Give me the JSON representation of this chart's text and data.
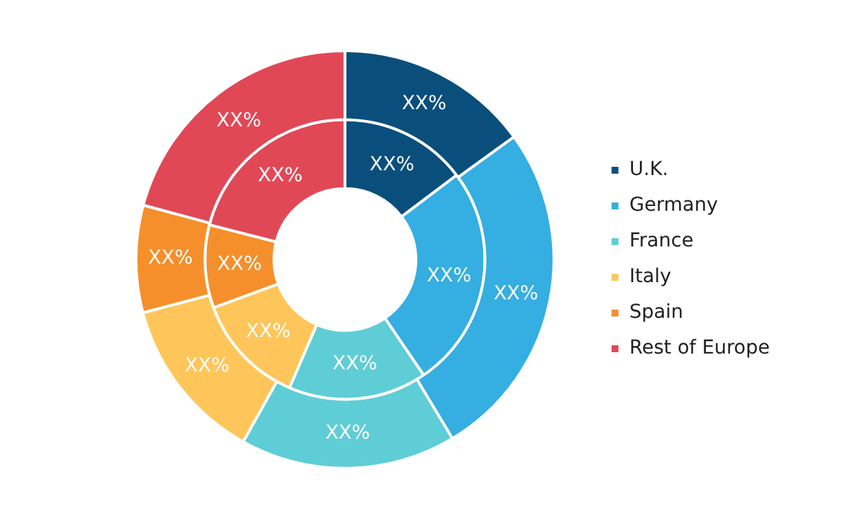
{
  "chart_data": {
    "type": "donut",
    "categories": [
      "U.K.",
      "Germany",
      "France",
      "Italy",
      "Spain",
      "Rest of Europe"
    ],
    "colors": [
      "#0a4f7c",
      "#35aee2",
      "#5fcdd6",
      "#fec65a",
      "#f58f2b",
      "#e14856"
    ],
    "legend": "right",
    "series": [
      {
        "values": [
          15.0,
          26.4,
          16.7,
          12.8,
          8.3,
          20.8
        ],
        "value_labels": [
          "XX%",
          "XX%",
          "XX%",
          "XX%",
          "XX%",
          "XX%"
        ]
      },
      {
        "values": [
          14.7,
          25.8,
          16.0,
          12.9,
          9.6,
          21.0
        ],
        "value_labels": [
          "XX%",
          "XX%",
          "XX%",
          "XX%",
          "XX%",
          "XX%"
        ]
      }
    ]
  }
}
